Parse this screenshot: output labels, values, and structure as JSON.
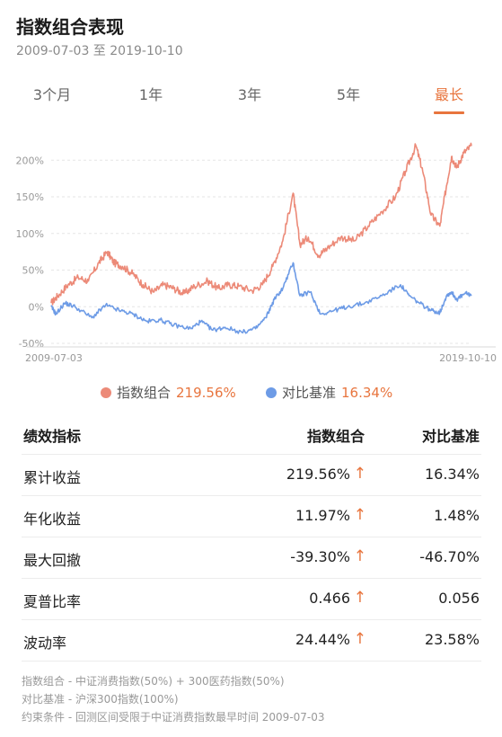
{
  "header": {
    "title": "指数组合表现",
    "date_range": "2009-07-03 至 2019-10-10"
  },
  "tabs": [
    {
      "label": "3个月",
      "active": false
    },
    {
      "label": "1年",
      "active": false
    },
    {
      "label": "3年",
      "active": false
    },
    {
      "label": "5年",
      "active": false
    },
    {
      "label": "最长",
      "active": true
    }
  ],
  "colors": {
    "accent": "#e8753e",
    "portfolio": "#ec8a78",
    "benchmark": "#6d9be6"
  },
  "chart_data": {
    "type": "line",
    "title": "",
    "xlabel": "",
    "ylabel": "",
    "x_ticks": [
      "2009-07-03",
      "2019-10-10"
    ],
    "y_ticks": [
      "200%",
      "150%",
      "100%",
      "50%",
      "0%",
      "-50%"
    ],
    "ylim": [
      -50,
      220
    ],
    "xlim": [
      "2009-07-03",
      "2019-10-10"
    ],
    "grid": true,
    "legend_position": "bottom",
    "series": [
      {
        "name": "指数组合",
        "color": "#ec8a78",
        "points": [
          [
            "2009-07-03",
            5
          ],
          [
            "2009-09-01",
            15
          ],
          [
            "2009-12-01",
            30
          ],
          [
            "2010-03-01",
            40
          ],
          [
            "2010-06-01",
            35
          ],
          [
            "2010-09-01",
            60
          ],
          [
            "2010-11-15",
            75
          ],
          [
            "2011-01-15",
            60
          ],
          [
            "2011-04-01",
            55
          ],
          [
            "2011-07-01",
            45
          ],
          [
            "2011-10-01",
            30
          ],
          [
            "2012-01-01",
            20
          ],
          [
            "2012-04-01",
            30
          ],
          [
            "2012-07-01",
            25
          ],
          [
            "2012-10-01",
            18
          ],
          [
            "2013-01-01",
            28
          ],
          [
            "2013-05-01",
            35
          ],
          [
            "2013-08-01",
            25
          ],
          [
            "2013-11-01",
            30
          ],
          [
            "2014-02-01",
            28
          ],
          [
            "2014-06-01",
            22
          ],
          [
            "2014-09-01",
            30
          ],
          [
            "2014-12-01",
            55
          ],
          [
            "2015-03-01",
            90
          ],
          [
            "2015-06-01",
            155
          ],
          [
            "2015-08-01",
            85
          ],
          [
            "2015-10-15",
            95
          ],
          [
            "2016-01-15",
            70
          ],
          [
            "2016-04-01",
            80
          ],
          [
            "2016-08-01",
            95
          ],
          [
            "2016-12-01",
            90
          ],
          [
            "2017-04-01",
            110
          ],
          [
            "2017-08-01",
            130
          ],
          [
            "2017-12-01",
            150
          ],
          [
            "2018-03-01",
            185
          ],
          [
            "2018-06-01",
            220
          ],
          [
            "2018-08-01",
            185
          ],
          [
            "2018-10-15",
            125
          ],
          [
            "2019-01-01",
            110
          ],
          [
            "2019-03-01",
            165
          ],
          [
            "2019-04-15",
            205
          ],
          [
            "2019-06-01",
            190
          ],
          [
            "2019-08-01",
            210
          ],
          [
            "2019-10-10",
            219.56
          ]
        ]
      },
      {
        "name": "对比基准",
        "color": "#6d9be6",
        "points": [
          [
            "2009-07-03",
            0
          ],
          [
            "2009-08-15",
            -10
          ],
          [
            "2009-11-01",
            5
          ],
          [
            "2010-02-01",
            0
          ],
          [
            "2010-07-01",
            -15
          ],
          [
            "2010-11-01",
            2
          ],
          [
            "2011-03-01",
            -5
          ],
          [
            "2011-07-01",
            -10
          ],
          [
            "2011-11-01",
            -20
          ],
          [
            "2012-03-01",
            -18
          ],
          [
            "2012-07-01",
            -25
          ],
          [
            "2012-12-01",
            -30
          ],
          [
            "2013-03-01",
            -20
          ],
          [
            "2013-06-15",
            -32
          ],
          [
            "2013-10-01",
            -28
          ],
          [
            "2014-03-01",
            -35
          ],
          [
            "2014-07-01",
            -30
          ],
          [
            "2014-10-01",
            -15
          ],
          [
            "2014-12-15",
            10
          ],
          [
            "2015-03-01",
            25
          ],
          [
            "2015-06-01",
            60
          ],
          [
            "2015-08-01",
            15
          ],
          [
            "2015-11-01",
            20
          ],
          [
            "2016-02-01",
            -10
          ],
          [
            "2016-06-01",
            -5
          ],
          [
            "2016-10-01",
            0
          ],
          [
            "2017-03-01",
            5
          ],
          [
            "2017-08-01",
            15
          ],
          [
            "2018-01-15",
            30
          ],
          [
            "2018-04-01",
            15
          ],
          [
            "2018-07-01",
            5
          ],
          [
            "2018-10-15",
            -5
          ],
          [
            "2019-01-01",
            -8
          ],
          [
            "2019-03-01",
            15
          ],
          [
            "2019-04-15",
            20
          ],
          [
            "2019-06-01",
            10
          ],
          [
            "2019-08-15",
            18
          ],
          [
            "2019-10-10",
            16.34
          ]
        ]
      }
    ]
  },
  "legend": [
    {
      "name": "指数组合",
      "value": "219.56%"
    },
    {
      "name": "对比基准",
      "value": "16.34%"
    }
  ],
  "table": {
    "headers": [
      "绩效指标",
      "指数组合",
      "对比基准"
    ],
    "rows": [
      {
        "metric": "累计收益",
        "portfolio": "219.56%",
        "arrow": "↑",
        "benchmark": "16.34%"
      },
      {
        "metric": "年化收益",
        "portfolio": "11.97%",
        "arrow": "↑",
        "benchmark": "1.48%"
      },
      {
        "metric": "最大回撤",
        "portfolio": "-39.30%",
        "arrow": "↑",
        "benchmark": "-46.70%"
      },
      {
        "metric": "夏普比率",
        "portfolio": "0.466",
        "arrow": "↑",
        "benchmark": "0.056"
      },
      {
        "metric": "波动率",
        "portfolio": "24.44%",
        "arrow": "↑",
        "benchmark": "23.58%"
      }
    ]
  },
  "notes": [
    "指数组合 - 中证消费指数(50%) + 300医药指数(50%)",
    "对比基准 - 沪深300指数(100%)",
    "约束条件 - 回测区间受限于中证消费指数最早时间 2009-07-03"
  ]
}
